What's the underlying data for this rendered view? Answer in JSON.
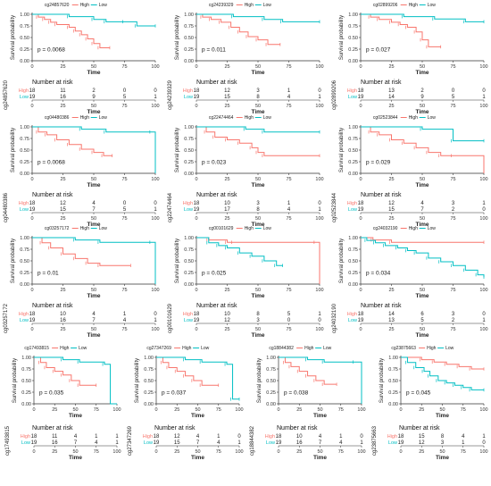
{
  "colors": {
    "high": "#F8766D",
    "low": "#00BFC4",
    "axis": "#333333"
  },
  "common": {
    "xlabel": "Time",
    "ylabel": "Survival probability",
    "risk_title": "Number at risk",
    "legend_high": "High",
    "legend_low": "Low",
    "row_high": "High",
    "row_low": "Low"
  },
  "chart_data": [
    {
      "type": "line",
      "title": "cg24857620",
      "pvalue": "p = 0.0068",
      "x_ticks": [
        "0",
        "25",
        "50",
        "75",
        "100"
      ],
      "y_ticks": [
        "0.00",
        "0.25",
        "0.50",
        "0.75",
        "1.00"
      ],
      "xlim": [
        0,
        100
      ],
      "ylim": [
        0,
        1
      ],
      "series": [
        {
          "name": "High",
          "x": [
            0,
            5,
            10,
            15,
            20,
            30,
            35,
            40,
            45,
            50,
            55,
            63
          ],
          "y": [
            1,
            0.94,
            0.89,
            0.83,
            0.78,
            0.72,
            0.64,
            0.56,
            0.47,
            0.37,
            0.28,
            0.28
          ]
        },
        {
          "name": "Low",
          "x": [
            0,
            30,
            50,
            60,
            75,
            85,
            100
          ],
          "y": [
            1,
            0.95,
            0.89,
            0.84,
            0.84,
            0.75,
            0.75
          ]
        }
      ],
      "risk_high": [
        "18",
        "11",
        "2",
        "0",
        "0"
      ],
      "risk_low": [
        "19",
        "16",
        "9",
        "5",
        "1"
      ],
      "risk_ylabel": "cg24857620"
    },
    {
      "type": "line",
      "title": "cg24239329",
      "pvalue": "p = 0.011",
      "x_ticks": [
        "0",
        "25",
        "50",
        "75",
        "100"
      ],
      "y_ticks": [
        "0.00",
        "0.25",
        "0.50",
        "0.75",
        "1.00"
      ],
      "xlim": [
        0,
        100
      ],
      "ylim": [
        0,
        1
      ],
      "series": [
        {
          "name": "High",
          "x": [
            0,
            5,
            12,
            20,
            28,
            35,
            42,
            50,
            58,
            68
          ],
          "y": [
            1,
            0.94,
            0.89,
            0.83,
            0.72,
            0.62,
            0.52,
            0.45,
            0.35,
            0.35
          ]
        },
        {
          "name": "Low",
          "x": [
            0,
            30,
            55,
            70,
            100
          ],
          "y": [
            1,
            0.95,
            0.89,
            0.84,
            0.84
          ]
        }
      ],
      "risk_high": [
        "18",
        "12",
        "3",
        "1",
        "0"
      ],
      "risk_low": [
        "19",
        "15",
        "8",
        "4",
        "1"
      ],
      "risk_ylabel": "cg24239329"
    },
    {
      "type": "line",
      "title": "cg02899206",
      "pvalue": "p = 0.027",
      "x_ticks": [
        "0",
        "25",
        "50",
        "75",
        "100"
      ],
      "y_ticks": [
        "0.00",
        "0.25",
        "0.50",
        "0.75",
        "1.00"
      ],
      "xlim": [
        0,
        100
      ],
      "ylim": [
        0,
        1
      ],
      "series": [
        {
          "name": "High",
          "x": [
            0,
            8,
            15,
            25,
            32,
            38,
            45,
            50,
            55,
            65
          ],
          "y": [
            1,
            0.94,
            0.89,
            0.83,
            0.78,
            0.72,
            0.62,
            0.45,
            0.3,
            0.3
          ]
        },
        {
          "name": "Low",
          "x": [
            0,
            35,
            60,
            85,
            100
          ],
          "y": [
            1,
            0.95,
            0.9,
            0.84,
            0.84
          ]
        }
      ],
      "risk_high": [
        "18",
        "13",
        "2",
        "0",
        "0"
      ],
      "risk_low": [
        "19",
        "14",
        "9",
        "5",
        "1"
      ],
      "risk_ylabel": "cg02899206"
    },
    {
      "type": "line",
      "title": "cg04480386",
      "pvalue": "p = 0.0068",
      "x_ticks": [
        "0",
        "25",
        "50",
        "75",
        "100"
      ],
      "y_ticks": [
        "0.00",
        "0.25",
        "0.50",
        "0.75",
        "1.00"
      ],
      "xlim": [
        0,
        100
      ],
      "ylim": [
        0,
        1
      ],
      "series": [
        {
          "name": "High",
          "x": [
            0,
            5,
            12,
            20,
            30,
            40,
            50,
            58,
            65
          ],
          "y": [
            1,
            0.89,
            0.83,
            0.72,
            0.62,
            0.52,
            0.45,
            0.38,
            0.38
          ]
        },
        {
          "name": "Low",
          "x": [
            0,
            40,
            60,
            97,
            100
          ],
          "y": [
            1,
            0.95,
            0.89,
            0.89,
            0
          ]
        }
      ],
      "risk_high": [
        "18",
        "12",
        "4",
        "0",
        "0"
      ],
      "risk_low": [
        "19",
        "15",
        "7",
        "5",
        "1"
      ],
      "risk_ylabel": "cg04480386"
    },
    {
      "type": "line",
      "title": "cg22474464",
      "pvalue": "p = 0.023",
      "x_ticks": [
        "0",
        "25",
        "50",
        "75",
        "100"
      ],
      "y_ticks": [
        "0.00",
        "0.25",
        "0.50",
        "0.75",
        "1.00"
      ],
      "xlim": [
        0,
        100
      ],
      "ylim": [
        0,
        1
      ],
      "series": [
        {
          "name": "High",
          "x": [
            0,
            8,
            15,
            25,
            35,
            45,
            50,
            55,
            100
          ],
          "y": [
            1,
            0.89,
            0.78,
            0.72,
            0.65,
            0.55,
            0.45,
            0.38,
            0.38
          ]
        },
        {
          "name": "Low",
          "x": [
            0,
            40,
            55,
            100
          ],
          "y": [
            1,
            0.95,
            0.89,
            0.89
          ]
        }
      ],
      "risk_high": [
        "18",
        "10",
        "3",
        "1",
        "0"
      ],
      "risk_low": [
        "19",
        "17",
        "8",
        "4",
        "1"
      ],
      "risk_ylabel": "cg22474464"
    },
    {
      "type": "line",
      "title": "cg02523844",
      "pvalue": "p = 0.029",
      "x_ticks": [
        "0",
        "25",
        "50",
        "75",
        "100"
      ],
      "y_ticks": [
        "0.00",
        "0.25",
        "0.50",
        "0.75",
        "1.00"
      ],
      "xlim": [
        0,
        100
      ],
      "ylim": [
        0,
        1
      ],
      "series": [
        {
          "name": "High",
          "x": [
            0,
            8,
            15,
            25,
            35,
            45,
            55,
            65,
            75,
            100
          ],
          "y": [
            1,
            0.89,
            0.83,
            0.72,
            0.65,
            0.55,
            0.45,
            0.38,
            0.38,
            0.0
          ]
        },
        {
          "name": "Low",
          "x": [
            0,
            50,
            75,
            100
          ],
          "y": [
            1,
            0.95,
            0.7,
            0.7
          ]
        }
      ],
      "risk_high": [
        "18",
        "12",
        "4",
        "3",
        "1"
      ],
      "risk_low": [
        "19",
        "15",
        "7",
        "2",
        "0"
      ],
      "risk_ylabel": "cg02523844"
    },
    {
      "type": "line",
      "title": "cg03257172",
      "pvalue": "p = 0.01",
      "x_ticks": [
        "0",
        "25",
        "50",
        "75",
        "100"
      ],
      "y_ticks": [
        "0.00",
        "0.25",
        "0.50",
        "0.75",
        "1.00"
      ],
      "xlim": [
        0,
        100
      ],
      "ylim": [
        0,
        1
      ],
      "series": [
        {
          "name": "High",
          "x": [
            0,
            8,
            15,
            25,
            35,
            45,
            55,
            80
          ],
          "y": [
            1,
            0.89,
            0.78,
            0.65,
            0.55,
            0.45,
            0.4,
            0.4
          ]
        },
        {
          "name": "Low",
          "x": [
            0,
            35,
            55,
            97,
            100
          ],
          "y": [
            1,
            0.95,
            0.9,
            0.9,
            0
          ]
        }
      ],
      "risk_high": [
        "18",
        "10",
        "4",
        "1",
        "0"
      ],
      "risk_low": [
        "19",
        "16",
        "7",
        "4",
        "1"
      ],
      "risk_ylabel": "cg03257172"
    },
    {
      "type": "line",
      "title": "cg00101629",
      "pvalue": "p = 0.025",
      "x_ticks": [
        "0",
        "25",
        "50",
        "75",
        "100"
      ],
      "y_ticks": [
        "0.00",
        "0.25",
        "0.50",
        "0.75",
        "1.00"
      ],
      "xlim": [
        0,
        100
      ],
      "ylim": [
        0,
        1
      ],
      "series": [
        {
          "name": "High",
          "x": [
            0,
            10,
            25,
            30,
            97,
            100
          ],
          "y": [
            1,
            0.95,
            0.9,
            0.9,
            0.9,
            0
          ]
        },
        {
          "name": "Low",
          "x": [
            0,
            10,
            18,
            25,
            35,
            45,
            55,
            65,
            70
          ],
          "y": [
            1,
            0.89,
            0.83,
            0.78,
            0.67,
            0.6,
            0.5,
            0.4,
            0.4
          ]
        }
      ],
      "risk_high": [
        "18",
        "10",
        "8",
        "5",
        "1"
      ],
      "risk_low": [
        "19",
        "12",
        "3",
        "0",
        "0"
      ],
      "risk_ylabel": "cg00101629"
    },
    {
      "type": "line",
      "title": "cg24032190",
      "pvalue": "p = 0.034",
      "x_ticks": [
        "0",
        "25",
        "50",
        "75",
        "100"
      ],
      "y_ticks": [
        "0.00",
        "0.25",
        "0.50",
        "0.75",
        "1.00"
      ],
      "xlim": [
        0,
        100
      ],
      "ylim": [
        0,
        1
      ],
      "series": [
        {
          "name": "High",
          "x": [
            0,
            10,
            25,
            100
          ],
          "y": [
            1,
            0.95,
            0.9,
            0.9
          ]
        },
        {
          "name": "Low",
          "x": [
            0,
            5,
            12,
            20,
            30,
            38,
            45,
            55,
            65,
            75,
            85,
            95,
            100
          ],
          "y": [
            1,
            0.94,
            0.89,
            0.83,
            0.78,
            0.72,
            0.67,
            0.56,
            0.48,
            0.4,
            0.3,
            0.2,
            0.15
          ]
        }
      ],
      "risk_high": [
        "18",
        "14",
        "6",
        "3",
        "0"
      ],
      "risk_low": [
        "19",
        "13",
        "5",
        "2",
        "1"
      ],
      "risk_ylabel": "cg24032190"
    },
    {
      "type": "line",
      "title": "cg17493815",
      "pvalue": "p = 0.035",
      "x_ticks": [
        "0",
        "25",
        "50",
        "75",
        "100"
      ],
      "y_ticks": [
        "0.00",
        "0.25",
        "0.50",
        "0.75",
        "1.00"
      ],
      "xlim": [
        0,
        100
      ],
      "ylim": [
        0,
        1
      ],
      "series": [
        {
          "name": "High",
          "x": [
            0,
            8,
            15,
            25,
            35,
            45,
            55,
            75
          ],
          "y": [
            1,
            0.89,
            0.78,
            0.7,
            0.62,
            0.5,
            0.4,
            0.4
          ]
        },
        {
          "name": "Low",
          "x": [
            0,
            35,
            55,
            85,
            92,
            100
          ],
          "y": [
            1,
            0.95,
            0.9,
            0.85,
            0,
            0
          ]
        }
      ],
      "risk_high": [
        "18",
        "11",
        "4",
        "1",
        "1"
      ],
      "risk_low": [
        "19",
        "16",
        "7",
        "4",
        "1"
      ],
      "risk_ylabel": "cg17493815"
    },
    {
      "type": "line",
      "title": "cg27347269",
      "pvalue": "p = 0.037",
      "x_ticks": [
        "0",
        "25",
        "50",
        "75",
        "100"
      ],
      "y_ticks": [
        "0.00",
        "0.25",
        "0.50",
        "0.75",
        "1.00"
      ],
      "xlim": [
        0,
        100
      ],
      "ylim": [
        0,
        1
      ],
      "series": [
        {
          "name": "High",
          "x": [
            0,
            8,
            15,
            25,
            35,
            45,
            55,
            75
          ],
          "y": [
            1,
            0.89,
            0.78,
            0.7,
            0.6,
            0.5,
            0.4,
            0.4
          ]
        },
        {
          "name": "Low",
          "x": [
            0,
            35,
            55,
            85,
            92,
            100
          ],
          "y": [
            1,
            0.95,
            0.9,
            0.85,
            0.1,
            0.1
          ]
        }
      ],
      "risk_high": [
        "18",
        "12",
        "4",
        "1",
        "0"
      ],
      "risk_low": [
        "19",
        "15",
        "7",
        "4",
        "1"
      ],
      "risk_ylabel": "cg27347269"
    },
    {
      "type": "line",
      "title": "cg18844382",
      "pvalue": "p = 0.038",
      "x_ticks": [
        "0",
        "25",
        "50",
        "75",
        "100"
      ],
      "y_ticks": [
        "0.00",
        "0.25",
        "0.50",
        "0.75",
        "1.00"
      ],
      "xlim": [
        0,
        100
      ],
      "ylim": [
        0,
        1
      ],
      "series": [
        {
          "name": "High",
          "x": [
            0,
            8,
            15,
            25,
            35,
            45,
            55,
            70
          ],
          "y": [
            1,
            0.89,
            0.8,
            0.7,
            0.6,
            0.5,
            0.42,
            0.42
          ]
        },
        {
          "name": "Low",
          "x": [
            0,
            35,
            55,
            92,
            100
          ],
          "y": [
            1,
            0.95,
            0.9,
            0.9,
            0
          ]
        }
      ],
      "risk_high": [
        "18",
        "10",
        "4",
        "1",
        "0"
      ],
      "risk_low": [
        "19",
        "16",
        "7",
        "4",
        "1"
      ],
      "risk_ylabel": "cg18844382"
    },
    {
      "type": "line",
      "title": "cg23875663",
      "pvalue": "p = 0.045",
      "x_ticks": [
        "0",
        "25",
        "50",
        "75",
        "100"
      ],
      "y_ticks": [
        "0.00",
        "0.25",
        "0.50",
        "0.75",
        "1.00"
      ],
      "xlim": [
        0,
        100
      ],
      "ylim": [
        0,
        1
      ],
      "series": [
        {
          "name": "High",
          "x": [
            0,
            25,
            40,
            55,
            70,
            85,
            100
          ],
          "y": [
            1,
            0.95,
            0.9,
            0.85,
            0.8,
            0.75,
            0.75
          ]
        },
        {
          "name": "Low",
          "x": [
            0,
            8,
            18,
            28,
            35,
            45,
            55,
            65,
            75,
            85,
            100
          ],
          "y": [
            1,
            0.89,
            0.78,
            0.7,
            0.6,
            0.5,
            0.45,
            0.4,
            0.35,
            0.3,
            0.3
          ]
        }
      ],
      "risk_high": [
        "18",
        "15",
        "8",
        "4",
        "1"
      ],
      "risk_low": [
        "19",
        "12",
        "3",
        "1",
        "0"
      ],
      "risk_ylabel": "cg23875663"
    }
  ]
}
